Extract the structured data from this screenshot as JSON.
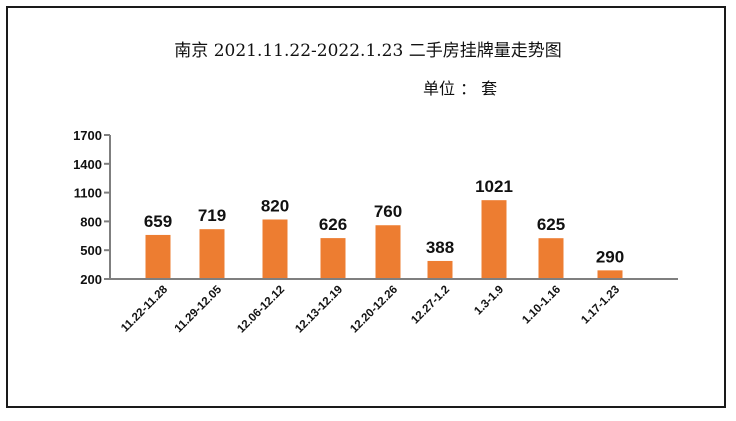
{
  "chart_data": {
    "type": "bar",
    "title": "南京 2021.11.22-2022.1.23 二手房挂牌量走势图",
    "unit_label": "单位 ： 套",
    "xlabel": "",
    "ylabel": "",
    "ylim": [
      200,
      1700
    ],
    "yticks": [
      200,
      500,
      800,
      1100,
      1400,
      1700
    ],
    "grid": false,
    "legend": null,
    "bar_color": "#ED7D31",
    "axis_color": "#7f7f7f",
    "categories": [
      "11.22-11.28",
      "11.29-12.05",
      "12.06-12.12",
      "12.13-12.19",
      "12.20-12.26",
      "12.27-1.2",
      "1.3-1.9",
      "1.10-1.16",
      "1.17-1.23"
    ],
    "values": [
      659,
      719,
      820,
      626,
      760,
      388,
      1021,
      625,
      290
    ],
    "data_labels": [
      "659",
      "719",
      "820",
      "626",
      "760",
      "388",
      "1021",
      "625",
      "290"
    ]
  }
}
